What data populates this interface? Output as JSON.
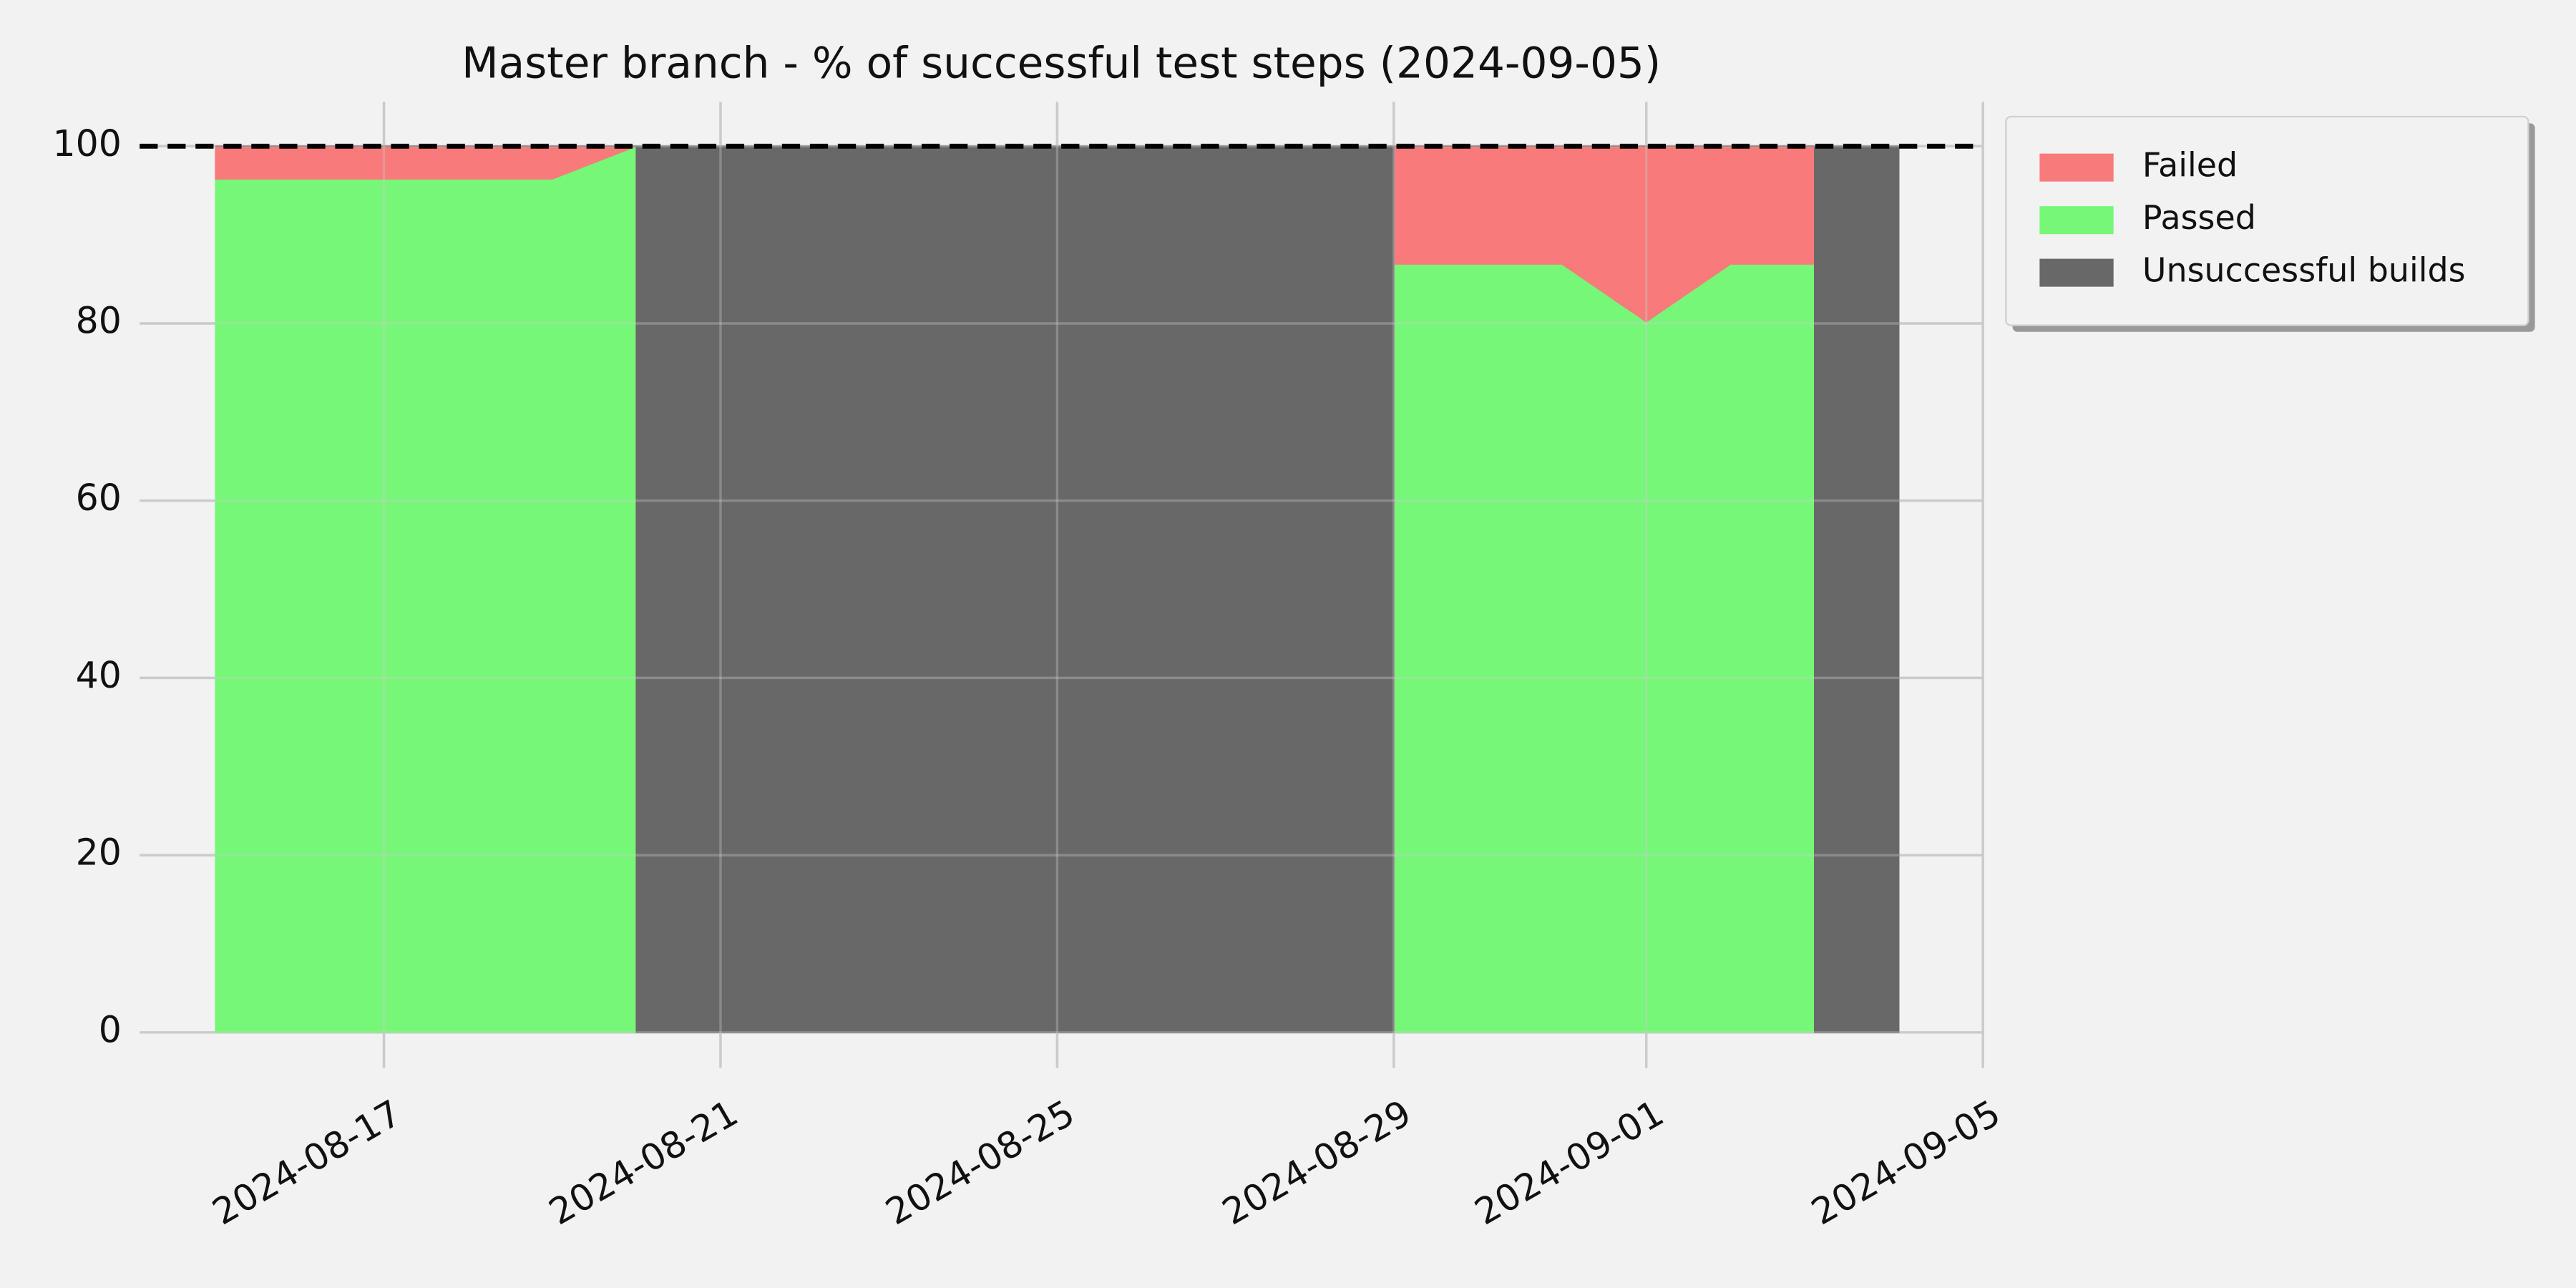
{
  "chart_data": {
    "type": "stacked_area",
    "title": "Master branch - % of successful test steps (2024-09-05)",
    "x": [
      "2024-08-15",
      "2024-08-16",
      "2024-08-17",
      "2024-08-18",
      "2024-08-19",
      "2024-08-20",
      "2024-08-20",
      "2024-08-29",
      "2024-08-29",
      "2024-08-30",
      "2024-08-31",
      "2024-09-01",
      "2024-09-02",
      "2024-09-03",
      "2024-09-03",
      "2024-09-04"
    ],
    "series": [
      {
        "name": "Passed",
        "color": "#77f777",
        "values": [
          96.3,
          96.3,
          96.3,
          96.3,
          96.3,
          100,
          0,
          0,
          86.7,
          86.7,
          86.7,
          80.2,
          86.7,
          86.7,
          0,
          0
        ]
      },
      {
        "name": "Failed",
        "color": "#f87a7a",
        "values": [
          3.7,
          3.7,
          3.7,
          3.7,
          3.7,
          0,
          0,
          0,
          13.3,
          13.3,
          13.3,
          19.8,
          13.3,
          13.3,
          0,
          0
        ]
      },
      {
        "name": "Unsuccessful builds",
        "color": "#686868",
        "values": [
          0,
          0,
          0,
          0,
          0,
          0,
          100,
          100,
          0,
          0,
          0,
          0,
          0,
          0,
          100,
          100
        ]
      }
    ],
    "legend_order": [
      1,
      0,
      2
    ],
    "reference_line": 100,
    "xlim": [
      "2024-08-14",
      "2024-09-05"
    ],
    "xticks": [
      "2024-08-17",
      "2024-08-21",
      "2024-08-25",
      "2024-08-29",
      "2024-09-01",
      "2024-09-05"
    ],
    "ylim": [
      -4,
      105
    ],
    "yticks": [
      0,
      20,
      40,
      60,
      80,
      100
    ],
    "grid": true,
    "legend": "outside upper right"
  }
}
